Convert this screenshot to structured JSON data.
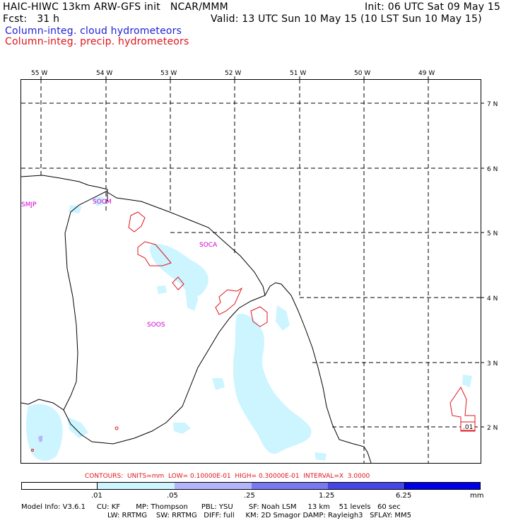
{
  "header": {
    "model_line": "HAIC-HIWC 13km ARW-GFS init   NCAR/MMM",
    "init_line": "Init: 06 UTC Sat 09 May 15",
    "fcst_label": "Fcst:   31 h",
    "valid_line": "Valid: 13 UTC Sun 10 May 15 (10 LST Sun 10 May 15)",
    "field1": "Column-integ. cloud hydrometeors",
    "field2": "Column-integ. precip. hydrometeors"
  },
  "colors": {
    "field1": "#1f1fd6",
    "field2": "#e0141b",
    "station": "#d000d0",
    "fill_light": "#ccf5ff"
  },
  "map": {
    "lon_labels": [
      "55 W",
      "54 W",
      "53 W",
      "52 W",
      "51 W",
      "50 W",
      "49 W"
    ],
    "lat_labels": [
      "7 N",
      "6 N",
      "5 N",
      "4 N",
      "3 N",
      "2 N"
    ],
    "stations": [
      "SMJP",
      "SOCM",
      "SOCA",
      "SOOS"
    ],
    "contour_label": ".01"
  },
  "contour_info": "CONTOURS:  UNITS=mm  LOW= 0.10000E-01  HIGH= 0.30000E-01  INTERVAL=X  3.0000",
  "legend": {
    "colors": [
      "#ffffff",
      "#ccf5ff",
      "#b4b4fa",
      "#7878f0",
      "#4646e6",
      "#0000e6"
    ],
    "labels": [
      ".01",
      ".05",
      ".25",
      "1.25",
      "6.25",
      "mm"
    ]
  },
  "footer": {
    "line1": "Model Info: V3.6.1     CU: KF       MP: Thompson      PBL: YSU       SF: Noah LSM     13 km    51 levels   60 sec",
    "line2": "LW: RRTMG    SW: RRTMG   DIFF: full     KM: 2D Smagor DAMP: Rayleigh3   SFLAY: MM5"
  }
}
